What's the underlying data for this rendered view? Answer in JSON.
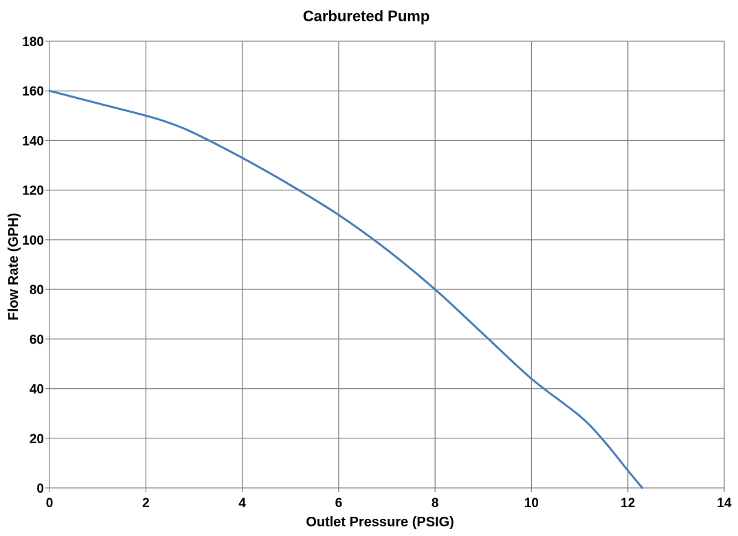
{
  "chart_data": {
    "type": "line",
    "title": "Carbureted Pump",
    "xlabel": "Outlet Pressure (PSIG)",
    "ylabel": "Flow Rate (GPH)",
    "xlim": [
      0,
      14
    ],
    "ylim": [
      0,
      180
    ],
    "x_ticks": [
      0,
      2,
      4,
      6,
      8,
      10,
      12,
      14
    ],
    "y_ticks": [
      0,
      20,
      40,
      60,
      80,
      100,
      120,
      140,
      160,
      180
    ],
    "grid": true,
    "legend": null,
    "series": [
      {
        "name": "Carbureted Pump",
        "color": "#4a7ebb",
        "x": [
          0,
          1,
          2,
          2.5,
          3,
          4,
          5,
          6,
          7,
          8,
          9,
          10,
          11,
          11.5,
          12,
          12.3
        ],
        "y": [
          160,
          155,
          150,
          147,
          143,
          133,
          122,
          110,
          96,
          80,
          62,
          44,
          29,
          19,
          7,
          0
        ]
      }
    ]
  },
  "colors": {
    "grid": "#868686",
    "background": "#ffffff",
    "line": "#4a7ebb"
  }
}
